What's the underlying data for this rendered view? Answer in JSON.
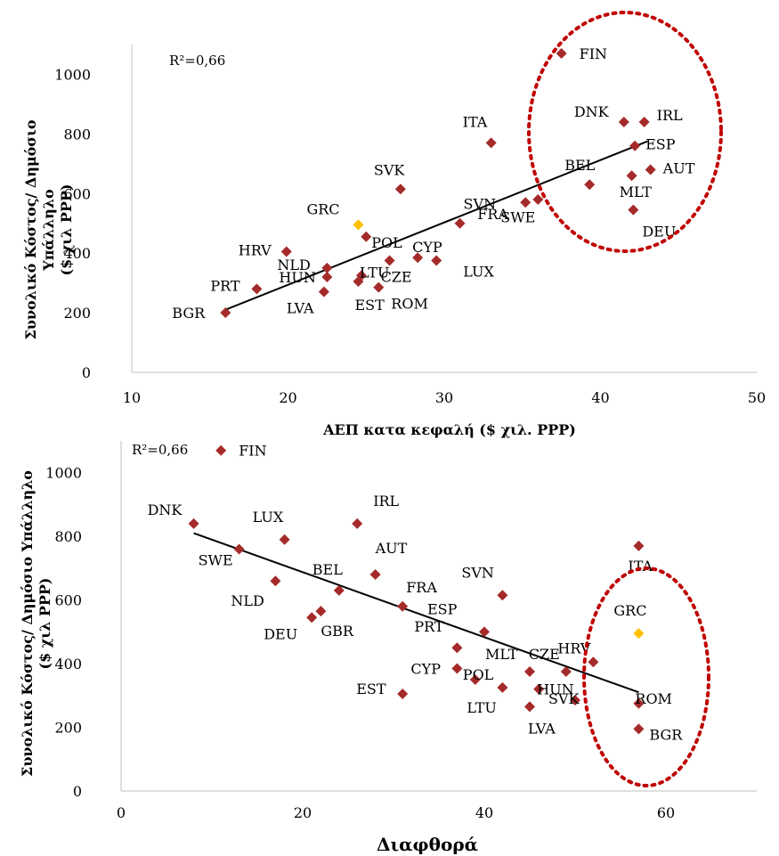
{
  "colors": {
    "point": "#A52A2A",
    "highlight": "#FFC000",
    "trend": "#000000",
    "ellipse": "#C00000",
    "axis": "#BFBFBF"
  },
  "chart_data": [
    {
      "type": "scatter",
      "annotation": "R²=0,66",
      "xlabel": "ΑΕΠ κατα κεφαλή ($ χιλ. PPP)",
      "ylabel": [
        "Συνολικό Κόστος/ Δημόσιο",
        "Υπάλληλο",
        "($ χιλ PPP)"
      ],
      "xlim": [
        10,
        50
      ],
      "ylim": [
        0,
        1100
      ],
      "xticks": [
        "10",
        "20",
        "30",
        "40",
        "50"
      ],
      "yticks": [
        "0",
        "200",
        "400",
        "600",
        "800",
        "1000"
      ],
      "trendline": {
        "x": [
          16,
          43
        ],
        "y": [
          210,
          775
        ]
      },
      "highlight": "GRC",
      "points": [
        {
          "label": "FIN",
          "x": 37.5,
          "y": 1070
        },
        {
          "label": "DNK",
          "x": 41.5,
          "y": 840
        },
        {
          "label": "IRL",
          "x": 42.8,
          "y": 840
        },
        {
          "label": "ITA",
          "x": 33,
          "y": 770
        },
        {
          "label": "ESP",
          "x": 42.2,
          "y": 760
        },
        {
          "label": "AUT",
          "x": 43.2,
          "y": 680
        },
        {
          "label": "BEL",
          "x": 39.3,
          "y": 630
        },
        {
          "label": "MLT",
          "x": 42,
          "y": 660
        },
        {
          "label": "SVK",
          "x": 27.2,
          "y": 615
        },
        {
          "label": "FRA",
          "x": 36,
          "y": 580
        },
        {
          "label": "SWE",
          "x": 35.2,
          "y": 570
        },
        {
          "label": "DEU",
          "x": 42.1,
          "y": 545
        },
        {
          "label": "SVN",
          "x": 31,
          "y": 500
        },
        {
          "label": "GRC",
          "x": 24.5,
          "y": 495
        },
        {
          "label": "POL",
          "x": 25,
          "y": 455
        },
        {
          "label": "HRV",
          "x": 19.9,
          "y": 405
        },
        {
          "label": "CYP",
          "x": 28.3,
          "y": 385
        },
        {
          "label": "NLD",
          "x": 22.5,
          "y": 350
        },
        {
          "label": "LUX",
          "x": 29.5,
          "y": 375
        },
        {
          "label": "HUN",
          "x": 22.5,
          "y": 320
        },
        {
          "label": "LTU",
          "x": 24.7,
          "y": 325
        },
        {
          "label": "CZE",
          "x": 26.5,
          "y": 375
        },
        {
          "label": "EST",
          "x": 24.5,
          "y": 305
        },
        {
          "label": "ROM",
          "x": 25.8,
          "y": 285
        },
        {
          "label": "LVA",
          "x": 22.3,
          "y": 270
        },
        {
          "label": "PRT",
          "x": 18,
          "y": 280
        },
        {
          "label": "BGR",
          "x": 16,
          "y": 200
        }
      ]
    },
    {
      "type": "scatter",
      "annotation": "R²=0,66",
      "xlabel": "Διαφθορά",
      "ylabel": [
        "Συνολικό Κόστος/ Δημόσιο Υπάλληλο",
        "($ χιλ PPP)"
      ],
      "xlim": [
        0,
        70
      ],
      "ylim": [
        0,
        1100
      ],
      "xticks": [
        "0",
        "20",
        "40",
        "60"
      ],
      "yticks": [
        "0",
        "200",
        "400",
        "600",
        "800",
        "1000"
      ],
      "trendline": {
        "x": [
          8,
          57
        ],
        "y": [
          810,
          310
        ]
      },
      "highlight": "GRC",
      "points": [
        {
          "label": "FIN",
          "x": 11,
          "y": 1070
        },
        {
          "label": "DNK",
          "x": 8,
          "y": 840
        },
        {
          "label": "LUX",
          "x": 18,
          "y": 790
        },
        {
          "label": "IRL",
          "x": 26,
          "y": 840
        },
        {
          "label": "SWE",
          "x": 13,
          "y": 760
        },
        {
          "label": "AUT",
          "x": 28,
          "y": 680
        },
        {
          "label": "NLD",
          "x": 17,
          "y": 660
        },
        {
          "label": "BEL",
          "x": 24,
          "y": 630
        },
        {
          "label": "FRA",
          "x": 31,
          "y": 580
        },
        {
          "label": "GBR",
          "x": 22,
          "y": 565
        },
        {
          "label": "DEU",
          "x": 21,
          "y": 545
        },
        {
          "label": "SVN",
          "x": 42,
          "y": 615
        },
        {
          "label": "ITA",
          "x": 57,
          "y": 770
        },
        {
          "label": "ESP",
          "x": 40,
          "y": 500
        },
        {
          "label": "GRC",
          "x": 57,
          "y": 495
        },
        {
          "label": "PRT",
          "x": 37,
          "y": 450
        },
        {
          "label": "HRV",
          "x": 52,
          "y": 405
        },
        {
          "label": "CZE",
          "x": 49,
          "y": 375
        },
        {
          "label": "MLT",
          "x": 45,
          "y": 375
        },
        {
          "label": "CYP",
          "x": 37,
          "y": 385
        },
        {
          "label": "POL",
          "x": 39,
          "y": 350
        },
        {
          "label": "LTU",
          "x": 42,
          "y": 325
        },
        {
          "label": "HUN",
          "x": 46,
          "y": 320
        },
        {
          "label": "EST",
          "x": 31,
          "y": 305
        },
        {
          "label": "SVK",
          "x": 50,
          "y": 285
        },
        {
          "label": "ROM",
          "x": 57,
          "y": 275
        },
        {
          "label": "LVA",
          "x": 45,
          "y": 265
        },
        {
          "label": "BGR",
          "x": 57,
          "y": 195
        }
      ]
    }
  ]
}
